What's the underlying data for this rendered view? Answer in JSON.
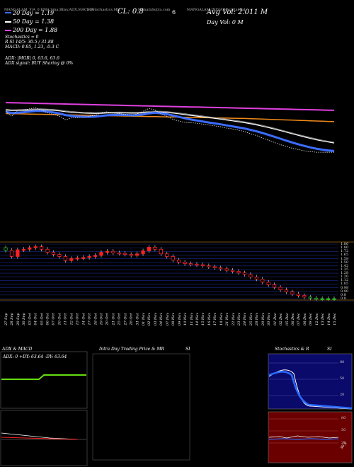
{
  "header": {
    "symbol_line": "MANGALAM_F/A_0 EMA,Sma,Bbxy,ADX,MACD,R",
    "indicators_label": "SI,Stochastics,MR",
    "close": "CL: 0.8",
    "charts_label": "MunafaSutra.com",
    "charts_num": "6",
    "company_label": "MANGALAM INDIA Hospital Pal",
    "avg_vol": "Avg Vol: 2.011 M",
    "day_vol": "Day Vol: 0  M",
    "ema20": "20  Day = 1.19",
    "ema50": "50  Day = 1.38",
    "ema200": "200  Day = 1.88",
    "stochastics": "Stochastics = 0",
    "rsi_line": "R                       SI 14/5: 30.5 / 31.88",
    "macd_line": "MACD: 0.95,  1.23,  -0.3 C",
    "adx_line1": "ADX:              |MGR| 0,  63.6,  63.6",
    "adx_line2": "ADX  signal:                          BUY Sharing @ 0%"
  },
  "colors": {
    "ema20": "#3b6cff",
    "ema50": "#ffffff",
    "ema200": "#e040e0",
    "orange": "#f08a1a",
    "up": "#ff2020",
    "green": "#22bb22",
    "grid": "#1b2a8c",
    "ref": "#9a6a10"
  },
  "x_dates": [
    "27 Sep",
    "28 Sep",
    "29 Sep",
    "30 Sep",
    "03 Oct",
    "04 Oct",
    "05 Oct",
    "06 Oct",
    "07 Oct",
    "10 Oct",
    "11 Oct",
    "12 Oct",
    "13 Oct",
    "14 Oct",
    "17 Oct",
    "18 Oct",
    "19 Oct",
    "20 Oct",
    "21 Oct",
    "25 Oct",
    "27 Oct",
    "28 Oct",
    "31 Oct",
    "01 Nov",
    "02 Nov",
    "03 Nov",
    "04 Nov",
    "07 Nov",
    "08 Nov",
    "09 Nov",
    "10 Nov",
    "11 Nov",
    "14 Nov",
    "15 Nov",
    "16 Nov",
    "17 Nov",
    "18 Nov",
    "21 Nov",
    "22 Nov",
    "23 Nov",
    "24 Nov",
    "25 Nov",
    "28 Nov",
    "29 Nov",
    "30 Nov",
    "01 Dec",
    "02 Dec",
    "05 Dec",
    "06 Dec",
    "07 Dec",
    "08 Dec",
    "09 Dec",
    "12 Dec",
    "13 Dec",
    "14 Dec",
    "15 Dec"
  ],
  "price_axis": [
    "1.86",
    "1.80",
    "1.72",
    "1.65",
    "1.58",
    "1.50",
    "1.42",
    "1.35",
    "1.28",
    "1.20",
    "1.12",
    "1.05",
    "0.98",
    "0.90",
    "0.8",
    "0.8"
  ],
  "chart_data": {
    "type": "candlestick",
    "close": [
      1.74,
      1.62,
      1.75,
      1.76,
      1.79,
      1.81,
      1.76,
      1.7,
      1.66,
      1.62,
      1.54,
      1.58,
      1.59,
      1.6,
      1.62,
      1.64,
      1.7,
      1.72,
      1.69,
      1.68,
      1.66,
      1.64,
      1.67,
      1.73,
      1.8,
      1.76,
      1.67,
      1.62,
      1.55,
      1.51,
      1.48,
      1.47,
      1.46,
      1.44,
      1.42,
      1.4,
      1.38,
      1.35,
      1.33,
      1.3,
      1.27,
      1.22,
      1.18,
      1.12,
      1.07,
      1.02,
      0.97,
      0.93,
      0.89,
      0.86,
      0.83,
      0.81,
      0.8,
      0.8,
      0.8,
      0.8
    ]
  },
  "panels": {
    "adx_title": "ADX  & MACD",
    "adx_values": "ADX: 0   +DY: 63.64   -DY: 63.64",
    "intra_title": "Intra  Day Trading Price  & MR",
    "intra_suffix": "SI",
    "stoch_title": "Stochastics & R",
    "stoch_suffix": "SI",
    "stoch_ticks": [
      "80",
      "50",
      "20"
    ],
    "rsi_ticks": [
      "80",
      "50",
      "20"
    ]
  },
  "rsi_value": "30.5"
}
